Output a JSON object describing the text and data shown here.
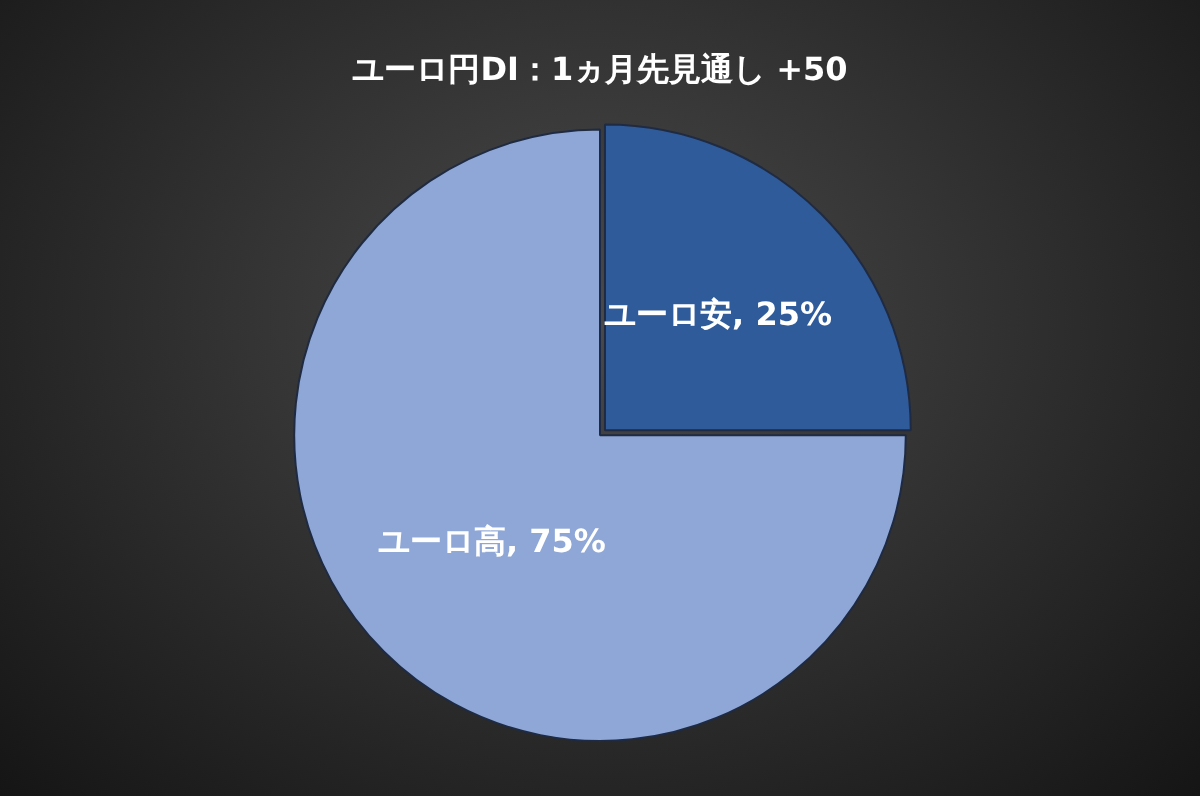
{
  "chart_data": {
    "type": "pie",
    "title": "ユーロ円DI：1ヵ月先見通し +50",
    "categories": [
      "ユーロ安",
      "ユーロ高"
    ],
    "values": [
      25,
      75
    ],
    "colors": [
      "#2f5b9b",
      "#8ea7d6"
    ],
    "value_labels": [
      "25%",
      "75%"
    ],
    "legend": false
  }
}
